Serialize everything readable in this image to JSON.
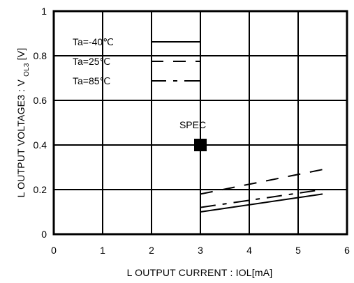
{
  "chart_data": {
    "type": "line",
    "xlabel": "L OUTPUT CURRENT : IOL[mA]",
    "ylabel": "L OUTPUT VOLTAGE3 : VOL3[V]",
    "ylabel_parts": {
      "prefix": "L OUTPUT VOLTAGE3 : V",
      "subscript": "OL3",
      "suffix": "[V]"
    },
    "xlim": [
      0,
      6
    ],
    "ylim": [
      0,
      1
    ],
    "x_ticks": [
      0,
      1,
      2,
      3,
      4,
      5,
      6
    ],
    "y_ticks": [
      0,
      0.2,
      0.4,
      0.6,
      0.8,
      1
    ],
    "x_tick_labels": [
      "0",
      "1",
      "2",
      "3",
      "4",
      "5",
      "6"
    ],
    "y_tick_labels": [
      "0",
      "0.2",
      "0.4",
      "0.6",
      "0.8",
      "1"
    ],
    "grid": true,
    "legend_position": "top-left",
    "series": [
      {
        "name": "Ta=-40℃",
        "style": "solid",
        "color": "#000000",
        "x": [
          3.0,
          5.5
        ],
        "y": [
          0.1,
          0.18
        ]
      },
      {
        "name": "Ta=25℃",
        "style": "dash",
        "color": "#000000",
        "x": [
          3.0,
          5.5
        ],
        "y": [
          0.18,
          0.29
        ]
      },
      {
        "name": "Ta=85℃",
        "style": "dashdot",
        "color": "#000000",
        "x": [
          3.0,
          5.5
        ],
        "y": [
          0.12,
          0.2
        ]
      }
    ],
    "annotations": [
      {
        "label": "SPEC",
        "x": 3.0,
        "y": 0.4,
        "marker": "square",
        "color": "#000000"
      }
    ]
  }
}
